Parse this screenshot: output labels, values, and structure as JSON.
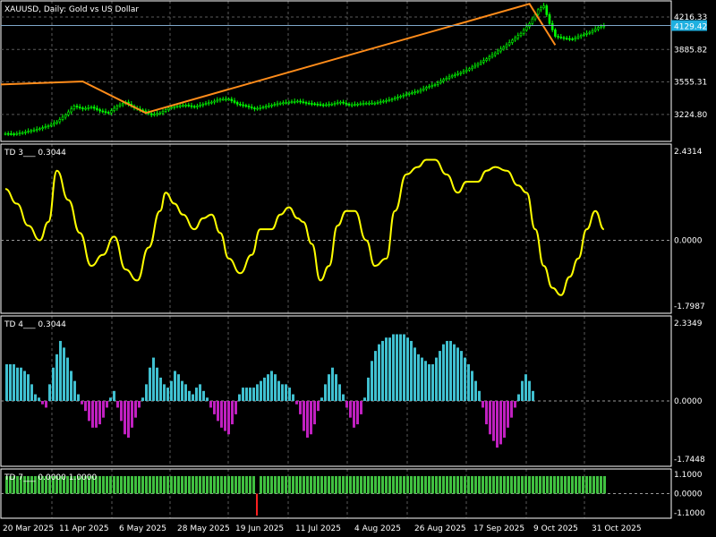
{
  "colors": {
    "background": "#000000",
    "frame": "#ffffff",
    "grid": "#5a5a5a",
    "candle": "#00ff00",
    "zigzag": "#ff8c1a",
    "bid_line": "#7fa7c9",
    "price_tag_bg": "#1fb0e0",
    "td3_line": "#ffff00",
    "td4_positive": "#40c0d0",
    "td4_negative": "#c020c0",
    "td7_positive": "#40c040",
    "td7_negative": "#ff2020",
    "zero_line": "#9a9a9a"
  },
  "chart_data": [
    {
      "type": "candlestick",
      "title": "XAUUSD, Daily: Gold vs US Dollar",
      "current_price": "4129.42",
      "y_ticks": [
        "4216.33",
        "3885.82",
        "3555.31",
        "3224.80"
      ],
      "ylim": [
        2950,
        4380
      ],
      "close_series": [
        [
          0,
          3030
        ],
        [
          3,
          3025
        ],
        [
          6,
          3040
        ],
        [
          9,
          3060
        ],
        [
          12,
          3080
        ],
        [
          15,
          3110
        ],
        [
          18,
          3150
        ],
        [
          21,
          3220
        ],
        [
          24,
          3310
        ],
        [
          27,
          3280
        ],
        [
          30,
          3300
        ],
        [
          33,
          3260
        ],
        [
          36,
          3240
        ],
        [
          39,
          3310
        ],
        [
          42,
          3350
        ],
        [
          45,
          3290
        ],
        [
          48,
          3260
        ],
        [
          51,
          3220
        ],
        [
          54,
          3240
        ],
        [
          57,
          3290
        ],
        [
          60,
          3310
        ],
        [
          63,
          3320
        ],
        [
          66,
          3300
        ],
        [
          69,
          3330
        ],
        [
          72,
          3350
        ],
        [
          75,
          3380
        ],
        [
          78,
          3380
        ],
        [
          81,
          3330
        ],
        [
          84,
          3310
        ],
        [
          87,
          3280
        ],
        [
          90,
          3300
        ],
        [
          93,
          3320
        ],
        [
          96,
          3340
        ],
        [
          99,
          3350
        ],
        [
          102,
          3360
        ],
        [
          105,
          3340
        ],
        [
          108,
          3330
        ],
        [
          111,
          3320
        ],
        [
          114,
          3330
        ],
        [
          117,
          3350
        ],
        [
          120,
          3320
        ],
        [
          123,
          3330
        ],
        [
          126,
          3340
        ],
        [
          129,
          3340
        ],
        [
          132,
          3360
        ],
        [
          135,
          3380
        ],
        [
          138,
          3410
        ],
        [
          141,
          3440
        ],
        [
          144,
          3460
        ],
        [
          147,
          3500
        ],
        [
          150,
          3530
        ],
        [
          153,
          3580
        ],
        [
          156,
          3620
        ],
        [
          159,
          3650
        ],
        [
          162,
          3690
        ],
        [
          165,
          3740
        ],
        [
          168,
          3790
        ],
        [
          171,
          3850
        ],
        [
          174,
          3910
        ],
        [
          177,
          3980
        ],
        [
          180,
          4050
        ],
        [
          183,
          4150
        ],
        [
          186,
          4290
        ],
        [
          188,
          4330
        ],
        [
          190,
          4150
        ],
        [
          192,
          4020
        ],
        [
          195,
          4000
        ],
        [
          198,
          3990
        ],
        [
          201,
          4030
        ],
        [
          204,
          4060
        ],
        [
          207,
          4110
        ],
        [
          209,
          4125
        ]
      ],
      "zigzag": [
        [
          0,
          3530
        ],
        [
          27,
          3560
        ],
        [
          49,
          3240
        ],
        [
          183,
          4350
        ],
        [
          192,
          3930
        ]
      ],
      "x_ticks": [
        "20 Mar 2025",
        "11 Apr 2025",
        "6 May 2025",
        "28 May 2025",
        "19 Jun 2025",
        "11 Jul 2025",
        "4 Aug 2025",
        "26 Aug 2025",
        "17 Sep 2025",
        "9 Oct 2025",
        "31 Oct 2025"
      ],
      "grid": true
    },
    {
      "type": "line",
      "title": "TD 3___ 0.3044",
      "ylim": [
        -1.7987,
        2.4314
      ],
      "y_ticks": [
        "2.4314",
        "0.0000",
        "-1.7987"
      ],
      "points": [
        [
          0,
          1.4
        ],
        [
          4,
          1.0
        ],
        [
          8,
          0.4
        ],
        [
          12,
          0.0
        ],
        [
          15,
          0.5
        ],
        [
          18,
          1.9
        ],
        [
          22,
          1.1
        ],
        [
          26,
          0.2
        ],
        [
          30,
          -0.7
        ],
        [
          34,
          -0.4
        ],
        [
          38,
          0.1
        ],
        [
          42,
          -0.8
        ],
        [
          46,
          -1.1
        ],
        [
          50,
          -0.2
        ],
        [
          54,
          0.8
        ],
        [
          56,
          1.3
        ],
        [
          59,
          1.0
        ],
        [
          62,
          0.7
        ],
        [
          66,
          0.3
        ],
        [
          69,
          0.6
        ],
        [
          72,
          0.7
        ],
        [
          75,
          0.2
        ],
        [
          78,
          -0.5
        ],
        [
          82,
          -0.9
        ],
        [
          86,
          -0.4
        ],
        [
          89,
          0.3
        ],
        [
          93,
          0.3
        ],
        [
          96,
          0.7
        ],
        [
          99,
          0.9
        ],
        [
          102,
          0.6
        ],
        [
          104,
          0.5
        ],
        [
          107,
          -0.1
        ],
        [
          110,
          -1.1
        ],
        [
          113,
          -0.7
        ],
        [
          116,
          0.4
        ],
        [
          119,
          0.8
        ],
        [
          122,
          0.8
        ],
        [
          126,
          0.0
        ],
        [
          129,
          -0.7
        ],
        [
          133,
          -0.5
        ],
        [
          136,
          0.8
        ],
        [
          140,
          1.8
        ],
        [
          144,
          2.0
        ],
        [
          147,
          2.2
        ],
        [
          150,
          2.2
        ],
        [
          154,
          1.8
        ],
        [
          158,
          1.3
        ],
        [
          161,
          1.6
        ],
        [
          165,
          1.6
        ],
        [
          168,
          1.9
        ],
        [
          171,
          2.0
        ],
        [
          175,
          1.9
        ],
        [
          179,
          1.5
        ],
        [
          182,
          1.3
        ],
        [
          185,
          0.3
        ],
        [
          188,
          -0.7
        ],
        [
          191,
          -1.3
        ],
        [
          194,
          -1.5
        ],
        [
          197,
          -1.0
        ],
        [
          200,
          -0.5
        ],
        [
          203,
          0.3
        ],
        [
          206,
          0.8
        ],
        [
          209,
          0.3
        ]
      ],
      "grid": true
    },
    {
      "type": "bar",
      "title": "TD 4___ 0.3044",
      "ylim": [
        -1.7448,
        2.3349
      ],
      "y_ticks": [
        "2.3349",
        "0.0000",
        "-1.7448"
      ],
      "values": [
        1.1,
        1.1,
        1.1,
        1.0,
        1.0,
        0.9,
        0.8,
        0.5,
        0.2,
        0.1,
        -0.1,
        -0.2,
        0.5,
        1.0,
        1.4,
        1.8,
        1.6,
        1.3,
        0.9,
        0.6,
        0.2,
        -0.1,
        -0.3,
        -0.6,
        -0.8,
        -0.8,
        -0.7,
        -0.5,
        -0.2,
        0.1,
        0.3,
        -0.2,
        -0.6,
        -1.0,
        -1.1,
        -0.8,
        -0.5,
        -0.2,
        0.1,
        0.5,
        1.0,
        1.3,
        1.0,
        0.7,
        0.5,
        0.4,
        0.6,
        0.9,
        0.8,
        0.6,
        0.5,
        0.3,
        0.2,
        0.4,
        0.5,
        0.3,
        0.1,
        -0.2,
        -0.4,
        -0.6,
        -0.8,
        -0.9,
        -1.0,
        -0.7,
        -0.4,
        0.2,
        0.4,
        0.4,
        0.4,
        0.4,
        0.5,
        0.6,
        0.7,
        0.8,
        0.9,
        0.8,
        0.6,
        0.5,
        0.5,
        0.4,
        0.2,
        -0.1,
        -0.4,
        -0.9,
        -1.1,
        -1.0,
        -0.7,
        -0.3,
        0.1,
        0.5,
        0.8,
        1.0,
        0.8,
        0.5,
        0.2,
        -0.2,
        -0.5,
        -0.8,
        -0.7,
        -0.4,
        0.1,
        0.7,
        1.2,
        1.5,
        1.7,
        1.8,
        1.9,
        1.9,
        2.0,
        2.0,
        2.0,
        2.0,
        1.9,
        1.8,
        1.6,
        1.4,
        1.3,
        1.2,
        1.1,
        1.1,
        1.3,
        1.5,
        1.7,
        1.8,
        1.8,
        1.7,
        1.6,
        1.5,
        1.3,
        1.1,
        0.9,
        0.6,
        0.3,
        -0.2,
        -0.7,
        -1.0,
        -1.2,
        -1.4,
        -1.3,
        -1.1,
        -0.8,
        -0.5,
        -0.2,
        0.2,
        0.6,
        0.8,
        0.6,
        0.3
      ],
      "grid": true
    },
    {
      "type": "bar",
      "title": "TD 7___ 0.0000 1.0000",
      "ylim": [
        -1.1,
        1.1
      ],
      "y_ticks": [
        "1.1000",
        "0.0000",
        "-1.1000"
      ],
      "value_count": 168,
      "exception_index": 70,
      "grid": true
    }
  ]
}
